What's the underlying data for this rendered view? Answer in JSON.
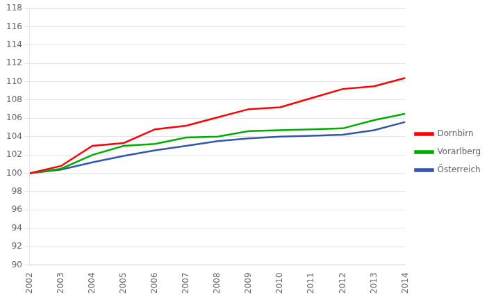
{
  "chart_data": {
    "type": "line",
    "x": [
      2002,
      2003,
      2004,
      2005,
      2006,
      2007,
      2008,
      2009,
      2010,
      2011,
      2012,
      2013,
      2014
    ],
    "series": [
      {
        "name": "Dornbirn",
        "color": "#ff0000",
        "values": [
          100.0,
          100.8,
          103.0,
          103.3,
          104.8,
          105.2,
          106.1,
          107.0,
          107.2,
          108.2,
          109.2,
          109.5,
          110.4
        ]
      },
      {
        "name": "Vorarlberg",
        "color": "#00aa00",
        "values": [
          100.0,
          100.5,
          102.0,
          103.0,
          103.2,
          103.9,
          104.0,
          104.6,
          104.7,
          104.8,
          104.9,
          105.8,
          106.5
        ]
      },
      {
        "name": "Österreich",
        "color": "#3355aa",
        "values": [
          100.0,
          100.4,
          101.2,
          101.9,
          102.5,
          103.0,
          103.5,
          103.8,
          104.0,
          104.1,
          104.2,
          104.7,
          105.6
        ]
      }
    ],
    "xlim": [
      2002,
      2014
    ],
    "xticks": [
      2002,
      2003,
      2004,
      2005,
      2006,
      2007,
      2008,
      2009,
      2010,
      2011,
      2012,
      2013,
      2014
    ],
    "ylim": [
      90,
      118
    ],
    "yticks": [
      90,
      92,
      94,
      96,
      98,
      100,
      102,
      104,
      106,
      108,
      110,
      112,
      114,
      116,
      118
    ],
    "grid": "y",
    "legend": "right"
  }
}
